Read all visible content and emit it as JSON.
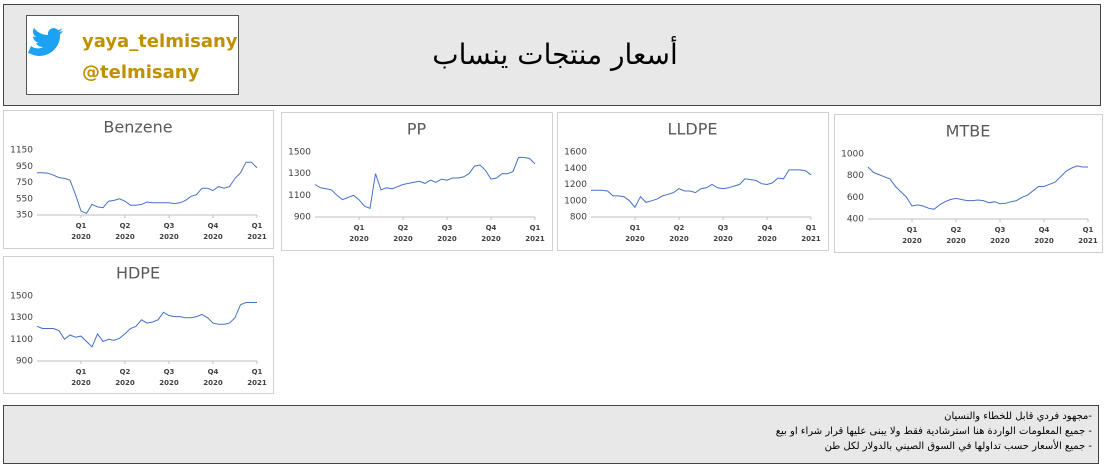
{
  "header": {
    "title": "أسعار منتجات ينساب",
    "handle_name": "yaya_telmisany",
    "handle": "@telmisany"
  },
  "footer": {
    "lines": [
      "-مجهود فردي قابل للخطاء والنسيان",
      "- جميع المعلومات الواردة هنا استرشادية فقط ولا يبنى عليها قرار شراء او بيع",
      "- جميع الأسعار حسب تداولها في السوق الصيني بالدولار لكل طن"
    ]
  },
  "chart_data": [
    {
      "type": "line",
      "title": "Benzene",
      "color": "#4472c4",
      "xlim": [
        0,
        40
      ],
      "xticks": [
        {
          "value": 8,
          "label": "Q1",
          "sublabel": "2020"
        },
        {
          "value": 16,
          "label": "Q2",
          "sublabel": "2020"
        },
        {
          "value": 24,
          "label": "Q3",
          "sublabel": "2020"
        },
        {
          "value": 32,
          "label": "Q4",
          "sublabel": "2020"
        },
        {
          "value": 40,
          "label": "Q1",
          "sublabel": "2021"
        }
      ],
      "ylim": [
        350,
        1150
      ],
      "yticks": [
        350,
        550,
        750,
        950,
        1150
      ],
      "values": [
        870,
        870,
        865,
        840,
        810,
        800,
        780,
        600,
        400,
        370,
        480,
        450,
        440,
        520,
        530,
        550,
        520,
        470,
        470,
        480,
        510,
        500,
        500,
        500,
        500,
        490,
        500,
        530,
        580,
        600,
        680,
        680,
        650,
        700,
        680,
        700,
        800,
        870,
        1000,
        1000,
        930
      ]
    },
    {
      "type": "line",
      "title": "PP",
      "color": "#4472c4",
      "xlim": [
        0,
        40
      ],
      "xticks": [
        {
          "value": 8,
          "label": "Q1",
          "sublabel": "2020"
        },
        {
          "value": 16,
          "label": "Q2",
          "sublabel": "2020"
        },
        {
          "value": 24,
          "label": "Q3",
          "sublabel": "2020"
        },
        {
          "value": 32,
          "label": "Q4",
          "sublabel": "2020"
        },
        {
          "value": 40,
          "label": "Q1",
          "sublabel": "2021"
        }
      ],
      "ylim": [
        900,
        1500
      ],
      "yticks": [
        900,
        1100,
        1300,
        1500
      ],
      "values": [
        1200,
        1170,
        1160,
        1150,
        1100,
        1060,
        1080,
        1100,
        1060,
        1000,
        980,
        1300,
        1150,
        1170,
        1160,
        1180,
        1200,
        1210,
        1220,
        1230,
        1210,
        1240,
        1220,
        1250,
        1240,
        1260,
        1260,
        1270,
        1300,
        1370,
        1380,
        1330,
        1250,
        1260,
        1300,
        1300,
        1320,
        1450,
        1450,
        1440,
        1390
      ]
    },
    {
      "type": "line",
      "title": "LLDPE",
      "color": "#4472c4",
      "xlim": [
        0,
        40
      ],
      "xticks": [
        {
          "value": 8,
          "label": "Q1",
          "sublabel": "2020"
        },
        {
          "value": 16,
          "label": "Q2",
          "sublabel": "2020"
        },
        {
          "value": 24,
          "label": "Q3",
          "sublabel": "2020"
        },
        {
          "value": 32,
          "label": "Q4",
          "sublabel": "2020"
        },
        {
          "value": 40,
          "label": "Q1",
          "sublabel": "2021"
        }
      ],
      "ylim": [
        800,
        1600
      ],
      "yticks": [
        800,
        1000,
        1200,
        1400,
        1600
      ],
      "values": [
        1130,
        1130,
        1130,
        1120,
        1060,
        1060,
        1050,
        1000,
        920,
        1050,
        980,
        1000,
        1020,
        1060,
        1080,
        1100,
        1150,
        1120,
        1120,
        1100,
        1150,
        1160,
        1200,
        1160,
        1150,
        1160,
        1180,
        1200,
        1270,
        1260,
        1250,
        1210,
        1200,
        1220,
        1280,
        1270,
        1380,
        1380,
        1380,
        1370,
        1320
      ]
    },
    {
      "type": "line",
      "title": "MTBE",
      "color": "#4472c4",
      "xlim": [
        0,
        40
      ],
      "xticks": [
        {
          "value": 8,
          "label": "Q1",
          "sublabel": "2020"
        },
        {
          "value": 16,
          "label": "Q2",
          "sublabel": "2020"
        },
        {
          "value": 24,
          "label": "Q3",
          "sublabel": "2020"
        },
        {
          "value": 32,
          "label": "Q4",
          "sublabel": "2020"
        },
        {
          "value": 40,
          "label": "Q1",
          "sublabel": "2021"
        }
      ],
      "ylim": [
        400,
        1000
      ],
      "yticks": [
        400,
        600,
        800,
        1000
      ],
      "values": [
        880,
        830,
        810,
        790,
        770,
        700,
        650,
        600,
        520,
        530,
        520,
        500,
        490,
        530,
        560,
        580,
        590,
        580,
        570,
        570,
        575,
        570,
        550,
        560,
        540,
        545,
        560,
        570,
        600,
        620,
        660,
        700,
        700,
        720,
        740,
        790,
        840,
        870,
        890,
        880,
        880
      ]
    },
    {
      "type": "line",
      "title": "HDPE",
      "color": "#4472c4",
      "xlim": [
        0,
        40
      ],
      "xticks": [
        {
          "value": 8,
          "label": "Q1",
          "sublabel": "2020"
        },
        {
          "value": 16,
          "label": "Q2",
          "sublabel": "2020"
        },
        {
          "value": 24,
          "label": "Q3",
          "sublabel": "2020"
        },
        {
          "value": 32,
          "label": "Q4",
          "sublabel": "2020"
        },
        {
          "value": 40,
          "label": "Q1",
          "sublabel": "2021"
        }
      ],
      "ylim": [
        900,
        1500
      ],
      "yticks": [
        900,
        1100,
        1300,
        1500
      ],
      "values": [
        1220,
        1200,
        1200,
        1200,
        1180,
        1100,
        1140,
        1120,
        1130,
        1080,
        1030,
        1150,
        1080,
        1100,
        1090,
        1110,
        1150,
        1200,
        1220,
        1280,
        1250,
        1260,
        1280,
        1350,
        1320,
        1310,
        1310,
        1300,
        1300,
        1310,
        1330,
        1300,
        1250,
        1240,
        1240,
        1250,
        1300,
        1420,
        1440,
        1440,
        1440
      ]
    }
  ]
}
